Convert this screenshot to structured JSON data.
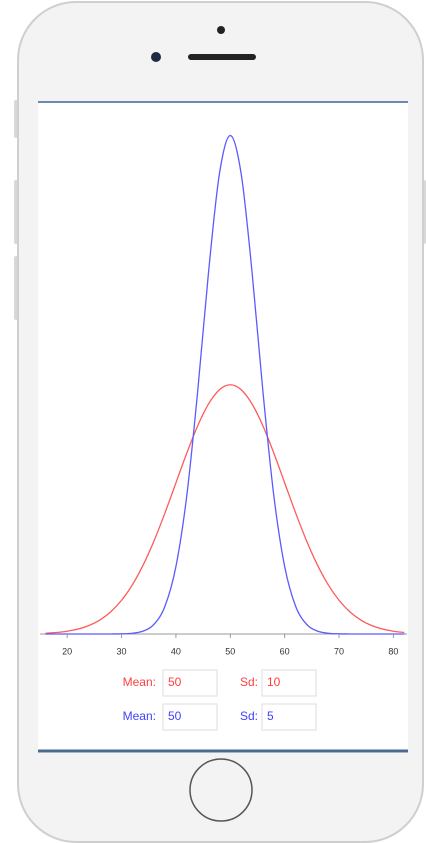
{
  "chart_data": {
    "type": "line",
    "x": [
      16,
      18,
      20,
      22,
      24,
      26,
      28,
      30,
      32,
      34,
      36,
      38,
      40,
      42,
      44,
      46,
      48,
      50,
      52,
      54,
      56,
      58,
      60,
      62,
      64,
      66,
      68,
      70,
      72,
      74,
      76,
      78,
      80,
      82
    ],
    "series": [
      {
        "color": "#ff5a5a",
        "values": [
          0.000123,
          0.000238,
          0.000443,
          0.000792,
          0.001358,
          0.002239,
          0.003547,
          0.005399,
          0.007895,
          0.011092,
          0.014973,
          0.019419,
          0.024197,
          0.028969,
          0.033322,
          0.036827,
          0.039104,
          0.039894,
          0.039104,
          0.036827,
          0.033322,
          0.028969,
          0.024197,
          0.019419,
          0.014973,
          0.011092,
          0.007895,
          0.005399,
          0.003547,
          0.002239,
          0.001358,
          0.000792,
          0.000443,
          0.000238
        ]
      },
      {
        "color": "#5a5aff",
        "values": [
          0,
          0,
          0,
          0,
          1e-07,
          8e-07,
          5e-06,
          2.7e-05,
          0.000122,
          0.000477,
          0.001583,
          0.004479,
          0.010798,
          0.022184,
          0.038837,
          0.057938,
          0.073654,
          0.079788,
          0.073654,
          0.057938,
          0.038837,
          0.022184,
          0.010798,
          0.004479,
          0.001583,
          0.000477,
          0.000122,
          2.7e-05,
          5e-06,
          8e-07,
          1e-07,
          0,
          0,
          0
        ]
      }
    ],
    "xlim": [
      15,
      82.5
    ],
    "xticks": [
      20,
      30,
      40,
      50,
      60,
      70,
      80
    ],
    "ylim": [
      0,
      0.085
    ],
    "controls": [
      {
        "color": "#ff4040",
        "mean_label": "Mean:",
        "mean": 50,
        "sd_label": "Sd:",
        "sd": 10
      },
      {
        "color": "#4040ff",
        "mean_label": "Mean:",
        "mean": 50,
        "sd_label": "Sd:",
        "sd": 5
      }
    ]
  }
}
